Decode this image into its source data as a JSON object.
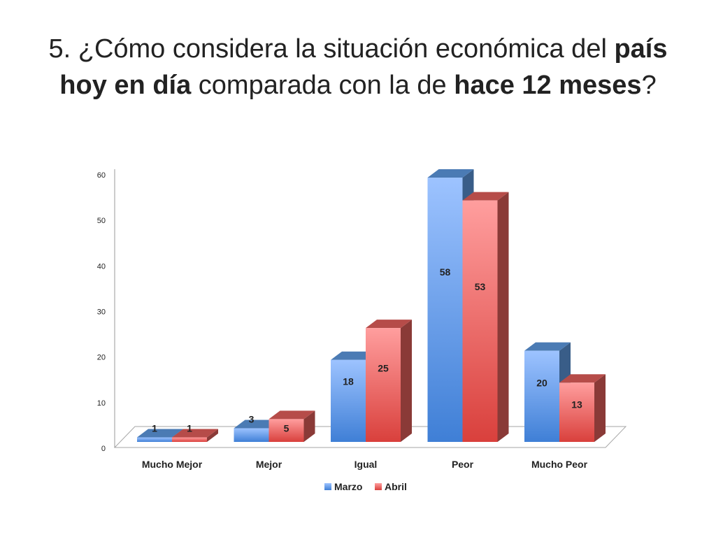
{
  "title": {
    "prefix": "5. ¿Cómo considera la situación económica del ",
    "bold1": "país hoy en día",
    "middle": " comparada con la de ",
    "bold2": "hace 12 meses",
    "suffix": "?"
  },
  "chart_data": {
    "type": "bar",
    "style": "3d-clustered-column",
    "categories": [
      "Mucho Mejor",
      "Mejor",
      "Igual",
      "Peor",
      "Mucho Peor"
    ],
    "series": [
      {
        "name": "Marzo",
        "values": [
          1,
          3,
          18,
          58,
          20
        ],
        "color": "#4f81bd"
      },
      {
        "name": "Abril",
        "values": [
          1,
          5,
          25,
          53,
          13
        ],
        "color": "#c0504d"
      }
    ],
    "y_ticks": [
      0,
      10,
      20,
      30,
      40,
      50,
      60
    ],
    "ylim": [
      0,
      60
    ],
    "grid": false,
    "legend": "bottom"
  }
}
